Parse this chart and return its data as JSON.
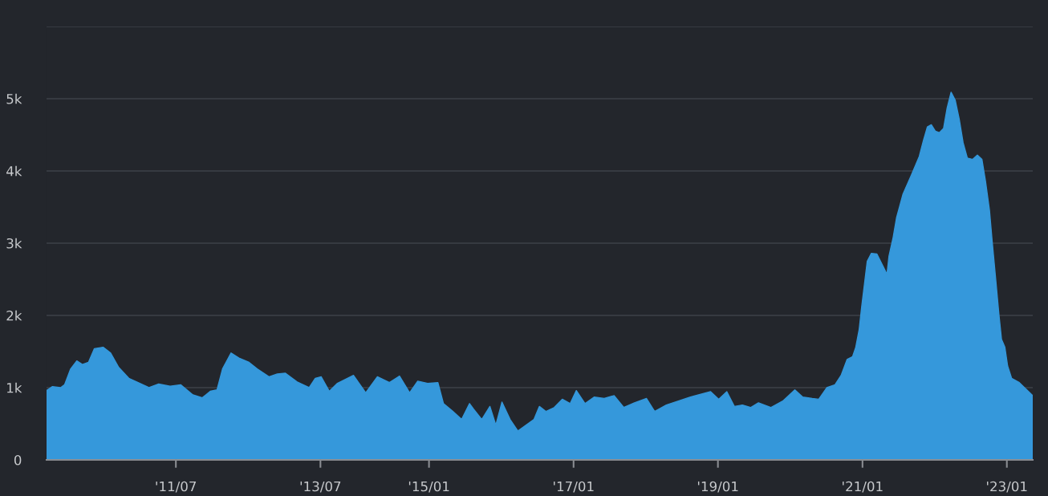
{
  "chart_data": {
    "type": "area",
    "x": [
      "2009-09-15",
      "2009-10-15",
      "2009-11-25",
      "2009-12-15",
      "2010-01-15",
      "2010-02-15",
      "2010-03-15",
      "2010-04-15",
      "2010-05-15",
      "2010-06-28",
      "2010-08-05",
      "2010-09-15",
      "2010-11-05",
      "2010-12-15",
      "2011-02-15",
      "2011-04-05",
      "2011-06-02",
      "2011-07-25",
      "2011-09-25",
      "2011-11-12",
      "2011-12-22",
      "2012-01-25",
      "2012-02-22",
      "2012-04-05",
      "2012-05-15",
      "2012-07-05",
      "2012-08-15",
      "2012-10-15",
      "2012-11-25",
      "2013-01-05",
      "2013-03-05",
      "2013-05-05",
      "2013-06-05",
      "2013-07-05",
      "2013-08-15",
      "2013-09-25",
      "2013-12-15",
      "2014-02-15",
      "2014-04-15",
      "2014-06-15",
      "2014-08-05",
      "2014-09-25",
      "2014-11-05",
      "2014-12-25",
      "2015-02-15",
      "2015-03-15",
      "2015-04-28",
      "2015-06-15",
      "2015-07-25",
      "2015-08-15",
      "2015-09-25",
      "2015-11-05",
      "2015-12-05",
      "2016-01-05",
      "2016-02-15",
      "2016-03-25",
      "2016-05-05",
      "2016-06-15",
      "2016-07-12",
      "2016-08-15",
      "2016-09-25",
      "2016-11-05",
      "2016-12-15",
      "2017-01-15",
      "2017-02-28",
      "2017-04-15",
      "2017-06-05",
      "2017-07-25",
      "2017-09-12",
      "2017-11-05",
      "2018-01-05",
      "2018-02-15",
      "2018-04-15",
      "2018-06-15",
      "2018-08-15",
      "2018-09-25",
      "2018-11-25",
      "2019-01-05",
      "2019-02-15",
      "2019-03-25",
      "2019-05-05",
      "2019-06-15",
      "2019-07-25",
      "2019-09-25",
      "2019-11-25",
      "2020-01-25",
      "2020-03-05",
      "2020-04-22",
      "2020-05-25",
      "2020-07-05",
      "2020-08-15",
      "2020-09-15",
      "2020-10-15",
      "2020-11-12",
      "2020-11-28",
      "2020-12-15",
      "2020-12-28",
      "2021-01-25",
      "2021-02-15",
      "2021-03-15",
      "2021-04-15",
      "2021-05-05",
      "2021-05-15",
      "2021-06-05",
      "2021-06-22",
      "2021-07-25",
      "2021-09-05",
      "2021-10-15",
      "2021-11-05",
      "2021-11-25",
      "2021-12-15",
      "2022-01-05",
      "2022-01-25",
      "2022-02-15",
      "2022-03-05",
      "2022-03-25",
      "2022-04-15",
      "2022-05-05",
      "2022-05-25",
      "2022-06-15",
      "2022-07-12",
      "2022-08-05",
      "2022-08-28",
      "2022-09-15",
      "2022-10-05",
      "2022-10-18",
      "2022-11-05",
      "2022-11-22",
      "2022-12-05",
      "2022-12-22",
      "2023-01-05",
      "2023-01-25",
      "2023-03-05",
      "2023-04-15",
      "2023-05-12"
    ],
    "values": [
      960,
      1015,
      1000,
      1040,
      1260,
      1370,
      1320,
      1350,
      1540,
      1560,
      1480,
      1280,
      1130,
      1080,
      1000,
      1050,
      1020,
      1040,
      900,
      860,
      950,
      970,
      1260,
      1480,
      1410,
      1350,
      1260,
      1150,
      1190,
      1200,
      1080,
      1000,
      1130,
      1150,
      950,
      1060,
      1170,
      930,
      1150,
      1070,
      1160,
      930,
      1090,
      1060,
      1070,
      780,
      680,
      560,
      780,
      700,
      560,
      740,
      480,
      800,
      560,
      400,
      480,
      560,
      740,
      670,
      725,
      840,
      780,
      960,
      780,
      870,
      850,
      890,
      725,
      790,
      850,
      670,
      760,
      815,
      870,
      900,
      945,
      840,
      945,
      740,
      760,
      725,
      790,
      725,
      815,
      970,
      870,
      850,
      840,
      1000,
      1040,
      1170,
      1390,
      1430,
      1560,
      1800,
      2120,
      2750,
      2860,
      2850,
      2680,
      2570,
      2820,
      3080,
      3350,
      3680,
      3940,
      4200,
      4420,
      4610,
      4640,
      4550,
      4530,
      4590,
      4870,
      5090,
      4980,
      4720,
      4390,
      4180,
      4160,
      4220,
      4160,
      3860,
      3460,
      3050,
      2520,
      2010,
      1670,
      1560,
      1300,
      1130,
      1070,
      960,
      890
    ],
    "color": "#3598db",
    "xlim": [
      "2009-09-15",
      "2023-05-12"
    ],
    "xticks": [
      {
        "value": "2011-07-01",
        "label": "'11/07"
      },
      {
        "value": "2013-07-01",
        "label": "'13/07"
      },
      {
        "value": "2015-01-01",
        "label": "'15/01"
      },
      {
        "value": "2017-01-01",
        "label": "'17/01"
      },
      {
        "value": "2019-01-01",
        "label": "'19/01"
      },
      {
        "value": "2021-01-01",
        "label": "'21/01"
      },
      {
        "value": "2023-01-01",
        "label": "'23/01"
      }
    ],
    "ylim": [
      0,
      6000
    ],
    "yticks": [
      {
        "value": 0,
        "label": "0"
      },
      {
        "value": 1000,
        "label": "1k"
      },
      {
        "value": 2000,
        "label": "2k"
      },
      {
        "value": 3000,
        "label": "3k"
      },
      {
        "value": 4000,
        "label": "4k"
      },
      {
        "value": 5000,
        "label": "5k"
      },
      {
        "value": 6000,
        "label": null
      }
    ],
    "grid": "y"
  }
}
